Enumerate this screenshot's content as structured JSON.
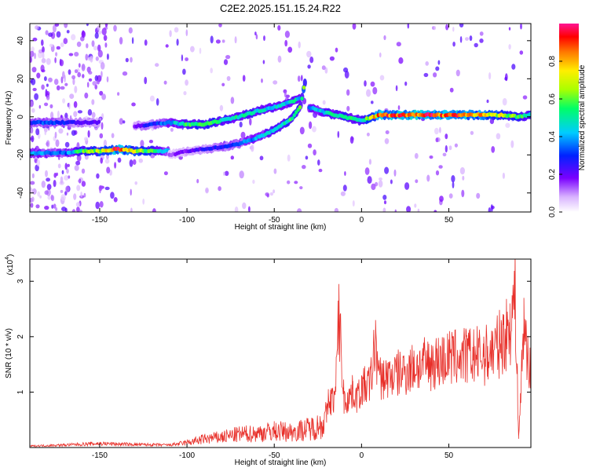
{
  "title": "C2E2.2025.151.15.24.R22",
  "chart_data": [
    {
      "type": "heatmap",
      "xlabel": "Height of straight line (km)",
      "ylabel": "Frequency (Hz)",
      "xlim": [
        -190,
        97
      ],
      "ylim": [
        -50,
        49
      ],
      "xticks": [
        -150,
        -100,
        -50,
        0,
        50
      ],
      "yticks": [
        -40,
        -20,
        0,
        20,
        40
      ],
      "colorbar": {
        "label": "Normalized spectral amplitude",
        "range": [
          0,
          1
        ],
        "ticks": [
          "0.0",
          "0.2",
          "0.4",
          "0.6",
          "0.8"
        ],
        "colors": [
          "#ff1493",
          "#ff0000",
          "#ffa500",
          "#ffff00",
          "#00ff00",
          "#00ffff",
          "#0000ff",
          "#8a2be2",
          "#ffffff"
        ]
      },
      "bands": [
        {
          "name": "",
          "x": [
            -190,
            -170,
            -160,
            -150,
            -140,
            -130,
            -120,
            -110
          ],
          "y": [
            -19,
            -19,
            -18,
            -18,
            -17,
            -18,
            -18,
            -18
          ],
          "amp": [
            0.4,
            0.35,
            0.6,
            0.7,
            0.95,
            0.7,
            0.6,
            0.35
          ]
        },
        {
          "name": "",
          "x": [
            -190,
            -180,
            -170,
            -160,
            -150
          ],
          "y": [
            -3,
            -3,
            -3,
            -3,
            -3
          ],
          "amp": [
            0.3,
            0.35,
            0.3,
            0.25,
            0.2
          ]
        },
        {
          "name": "",
          "x": [
            -130,
            -120,
            -110,
            -100,
            -90,
            -80,
            -70,
            -60,
            -50,
            -40,
            -35
          ],
          "y": [
            -5,
            -4,
            -3,
            -4,
            -4,
            -2,
            0,
            3,
            5,
            8,
            10
          ],
          "amp": [
            0.2,
            0.3,
            0.4,
            0.55,
            0.6,
            0.5,
            0.55,
            0.5,
            0.45,
            0.5,
            0.45
          ]
        },
        {
          "name": "",
          "x": [
            -110,
            -100,
            -90,
            -80,
            -70,
            -60,
            -50,
            -40,
            -35,
            -32
          ],
          "y": [
            -20,
            -18,
            -17,
            -16,
            -14,
            -11,
            -7,
            -1,
            5,
            20
          ],
          "amp": [
            0.15,
            0.2,
            0.25,
            0.3,
            0.35,
            0.4,
            0.5,
            0.55,
            0.6,
            0.7
          ]
        },
        {
          "name": "",
          "x": [
            -30,
            -20,
            -10,
            0,
            10,
            20,
            30,
            40,
            50,
            60,
            70,
            80,
            90,
            97
          ],
          "y": [
            5,
            2,
            0,
            -2,
            1,
            1,
            1,
            1,
            1,
            1,
            1,
            1,
            0,
            1
          ],
          "amp": [
            0.4,
            0.5,
            0.55,
            0.5,
            0.9,
            0.95,
            0.95,
            0.95,
            0.95,
            0.9,
            0.8,
            0.7,
            0.6,
            0.5
          ]
        }
      ]
    },
    {
      "type": "line",
      "xlabel": "Height of straight line (km)",
      "ylabel": "SNR (10 * v/v)",
      "y_multiplier": "(x10",
      "y_multiplier_exp": "4",
      "y_multiplier_close": ")",
      "xlim": [
        -190,
        97
      ],
      "ylim": [
        0,
        3.4
      ],
      "xticks": [
        -150,
        -100,
        -50,
        0,
        50
      ],
      "yticks": [
        1,
        2,
        3
      ],
      "line_color": "#e8302a",
      "series": [
        {
          "name": "",
          "x": [
            -190,
            -170,
            -150,
            -130,
            -110,
            -100,
            -90,
            -80,
            -70,
            -60,
            -50,
            -40,
            -30,
            -25,
            -22,
            -20,
            -19,
            -15,
            -13,
            -10,
            -5,
            -2,
            0,
            5,
            8,
            10,
            20,
            30,
            40,
            50,
            60,
            70,
            75,
            80,
            85,
            88,
            90,
            93,
            97
          ],
          "y": [
            0.03,
            0.05,
            0.08,
            0.06,
            0.05,
            0.1,
            0.18,
            0.22,
            0.28,
            0.3,
            0.35,
            0.33,
            0.4,
            0.45,
            0.5,
            0.65,
            1.0,
            1.1,
            2.95,
            1.0,
            1.2,
            1.1,
            1.3,
            1.4,
            2.3,
            1.5,
            1.6,
            1.75,
            1.85,
            1.95,
            2.0,
            2.0,
            2.1,
            2.3,
            2.6,
            3.4,
            0.2,
            2.7,
            1.5
          ]
        }
      ]
    }
  ]
}
